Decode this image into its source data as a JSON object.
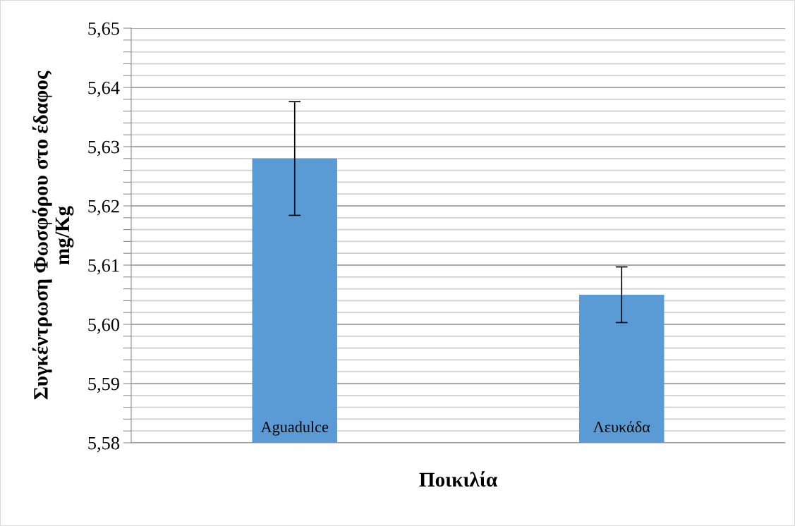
{
  "chart_data": {
    "type": "bar",
    "xlabel": "Ποικιλία",
    "ylabel": "Συγκέντρωση Φωσφόρου στο έδαφος\nmg/Kg",
    "categories": [
      "Aguadulce",
      "Λευκάδα"
    ],
    "values": [
      5.628,
      5.605
    ],
    "errors": [
      0.0096,
      0.0047
    ],
    "color": "#5b9bd5",
    "ylim": [
      5.58,
      5.65
    ],
    "yticks": [
      "5,58",
      {
        "value": 5.582,
        "label": null
      },
      {
        "value": 5.584,
        "label": null
      },
      {
        "value": 5.586,
        "label": null
      },
      {
        "value": 5.588,
        "label": null
      },
      {
        "value": 5.59,
        "label": "5,59"
      },
      {
        "value": 5.592,
        "label": null
      },
      {
        "value": 5.594,
        "label": null
      },
      {
        "value": 5.596,
        "label": null
      },
      {
        "value": 5.598,
        "label": null
      },
      {
        "value": 5.6,
        "label": "5,60"
      },
      {
        "value": 5.602,
        "label": null
      },
      {
        "value": 5.604,
        "label": null
      },
      {
        "value": 5.606,
        "label": null
      },
      {
        "value": 5.608,
        "label": null
      },
      {
        "value": 5.61,
        "label": "5,61"
      },
      {
        "value": 5.612,
        "label": null
      },
      {
        "value": 5.614,
        "label": null
      },
      {
        "value": 5.616,
        "label": null
      },
      {
        "value": 5.618,
        "label": null
      },
      {
        "value": 5.62,
        "label": "5,62"
      },
      {
        "value": 5.622,
        "label": null
      },
      {
        "value": 5.624,
        "label": null
      },
      {
        "value": 5.626,
        "label": null
      },
      {
        "value": 5.628,
        "label": null
      },
      {
        "value": 5.63,
        "label": "5,63"
      },
      {
        "value": 5.632,
        "label": null
      },
      {
        "value": 5.634,
        "label": null
      },
      {
        "value": 5.636,
        "label": null
      },
      {
        "value": 5.638,
        "label": null
      },
      {
        "value": 5.64,
        "label": "5,64"
      },
      {
        "value": 5.642,
        "label": null
      },
      {
        "value": 5.644,
        "label": null
      },
      {
        "value": 5.646,
        "label": null
      },
      {
        "value": 5.648,
        "label": null
      },
      {
        "value": 5.65,
        "label": "5,65"
      }
    ],
    "grid": "y"
  }
}
